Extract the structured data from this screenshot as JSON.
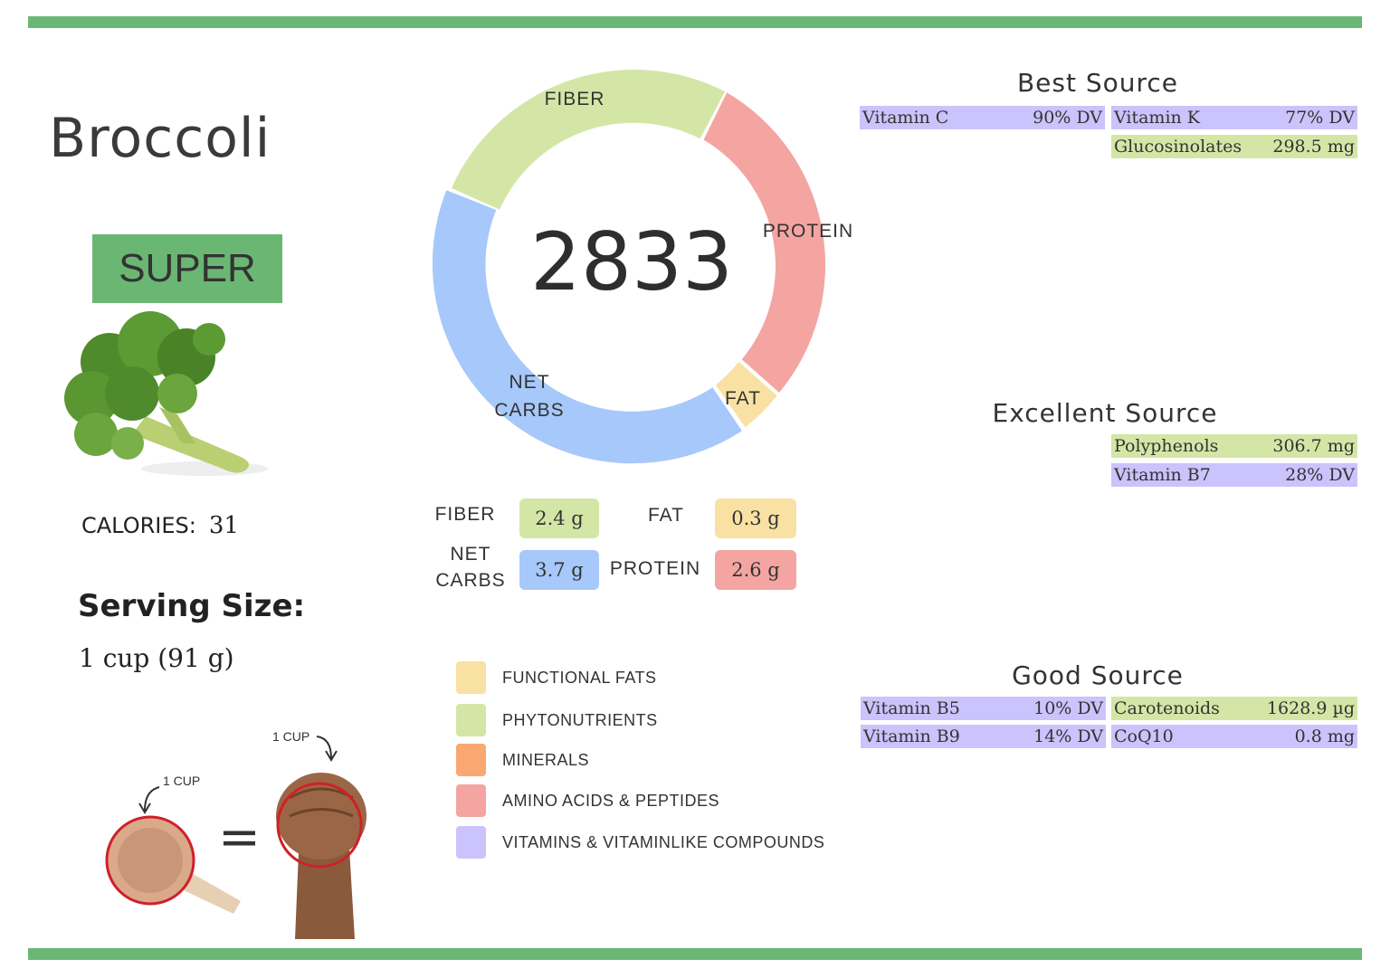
{
  "food": {
    "name": "Broccoli",
    "rating": "SUPER"
  },
  "calories": {
    "label": "CALORIES:",
    "value": "31"
  },
  "serving": {
    "label": "Serving Size:",
    "value": "1 cup (91 g)"
  },
  "score": "2833",
  "donut": {
    "labels": {
      "fiber": "FIBER",
      "protein": "PROTEIN",
      "fat": "FAT",
      "net_carbs_1": "NET",
      "net_carbs_2": "CARBS"
    },
    "colors": {
      "fiber": "#d4e6a6",
      "protein": "#f4a5a2",
      "fat": "#f9e1a4",
      "net_carbs": "#a7c8fa"
    }
  },
  "macros": {
    "fiber": {
      "label": "FIBER",
      "value": "2.4 g"
    },
    "fat": {
      "label": "FAT",
      "value": "0.3 g"
    },
    "net_carbs": {
      "label_1": "NET",
      "label_2": "CARBS",
      "value": "3.7 g"
    },
    "protein": {
      "label": "PROTEIN",
      "value": "2.6 g"
    }
  },
  "legend": [
    {
      "label": "FUNCTIONAL  FATS",
      "color": "#f9e1a4"
    },
    {
      "label": "PHYTONUTRIENTS",
      "color": "#d4e6a6"
    },
    {
      "label": "MINERALS",
      "color": "#f9a872"
    },
    {
      "label": "AMINO ACIDS & PEPTIDES",
      "color": "#f4a5a2"
    },
    {
      "label": "VITAMINS & VITAMINLIKE COMPOUNDS",
      "color": "#cbc3fb"
    }
  ],
  "best_source": {
    "title": "Best Source",
    "items": [
      {
        "name": "Vitamin C",
        "value": "90% DV"
      },
      {
        "name": "Vitamin K",
        "value": "77% DV"
      },
      {
        "name": "Glucosinolates",
        "value": "298.5 mg"
      }
    ]
  },
  "excellent_source": {
    "title": "Excellent Source",
    "items": [
      {
        "name": "Polyphenols",
        "value": "306.7 mg"
      },
      {
        "name": "Vitamin B7",
        "value": "28% DV"
      }
    ]
  },
  "good_source": {
    "title": "Good Source",
    "items": [
      {
        "name": "Vitamin B5",
        "value": "10% DV"
      },
      {
        "name": "Carotenoids",
        "value": "1628.9 µg"
      },
      {
        "name": "Vitamin B9",
        "value": "14% DV"
      },
      {
        "name": "CoQ10",
        "value": "0.8 mg"
      }
    ]
  },
  "measure": {
    "cup_label": "1 CUP",
    "fist_label": "1 CUP",
    "equals": "="
  }
}
